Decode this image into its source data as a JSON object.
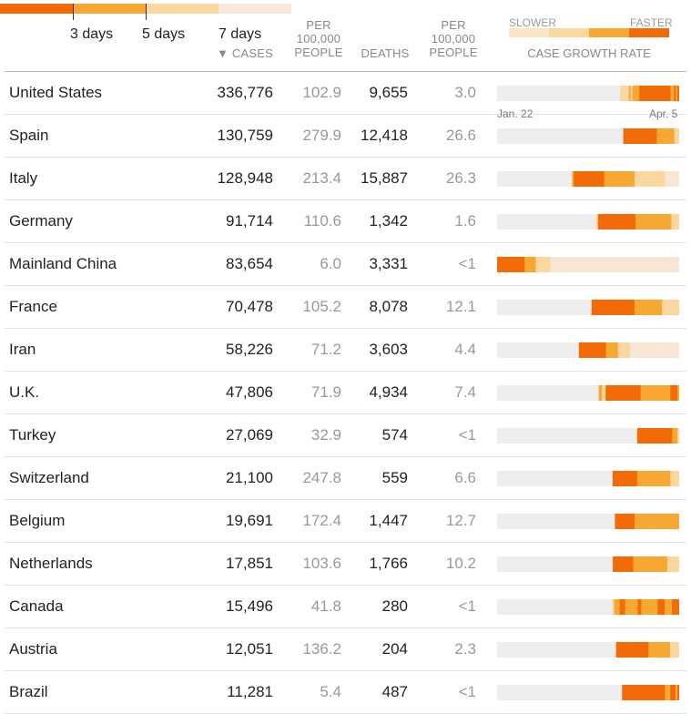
{
  "legend": {
    "labels": [
      "3 days",
      "5 days",
      "7 days"
    ],
    "colors": [
      "#f26b06",
      "#f7a833",
      "#fad79e",
      "#f7e8dd"
    ]
  },
  "headers": {
    "cases_arrow": "▼",
    "cases": "CASES",
    "per100k_1": "PER",
    "per100k_2": "100,000",
    "per100k_3": "PEOPLE",
    "deaths": "DEATHS",
    "dper100k_1": "PER",
    "dper100k_2": "100,000",
    "dper100k_3": "PEOPLE",
    "slower": "SLOWER",
    "faster": "FASTER",
    "growth": "CASE GROWTH RATE"
  },
  "dates": {
    "start": "Jan. 22",
    "end": "Apr. 5"
  },
  "rows": [
    {
      "country": "United States",
      "cases": "336,776",
      "per": "102.9",
      "deaths": "9,655",
      "dper": "3.0",
      "strip": "tttttttttttttttttttttttttttttttttttttttttttttttttttttttttttttttttttttttlllllmlmmmmhhhhhhhhhhhhhhhhhhmmhmh"
    },
    {
      "country": "Spain",
      "cases": "130,759",
      "per": "279.9",
      "deaths": "12,418",
      "dper": "26.6",
      "strip": "ttttttttttttttttttttttttttttttttttttttttttttttttttttttttttttttttttttttttttttttthhhhhhhhhhhhhhhhhhhhhmmmmmmmmmmmlll"
    },
    {
      "country": "Italy",
      "cases": "128,948",
      "per": "213.4",
      "deaths": "15,887",
      "dper": "26.3",
      "strip": "ttttttttttttttttttttttttttttttttttttttttttmhhhhhhhhhhhhhhhhhmmmmmmmmmmmmmmmmmlllllllllllllllllpppppppp"
    },
    {
      "country": "Germany",
      "cases": "91,714",
      "per": "110.6",
      "deaths": "1,342",
      "dper": "1.6",
      "strip": "ttttttttttttttttttttttttttttttttttttttttttttttttttlhhhhhhhhhhhhhhhhhhhmmmmmmmmmmmmmmmmmmllll"
    },
    {
      "country": "Mainland China",
      "cases": "83,654",
      "per": "6.0",
      "deaths": "3,331",
      "dper": "<1",
      "strip": "hhhhhhhhhhhhhhhmmmmmmllllllllpppppppppppppppppppppppppppppppppppppppppppppppppppppppppppppppppppppp"
    },
    {
      "country": "France",
      "cases": "70,478",
      "per": "105.2",
      "deaths": "8,078",
      "dper": "12.1",
      "strip": "ttttttttttttttttttttttttttttttttttttttttttttttttttttttthhhhhhhhhhhhhhhhhhhhhhhhhmmmmmmmmmmmmmmmmllllllllll"
    },
    {
      "country": "Iran",
      "cases": "58,226",
      "per": "71.2",
      "deaths": "3,603",
      "dper": "4.4",
      "strip": "tttttttttttttttttttttttttttttttttttttttttttttttthhhhhhhhhhhhhhhhmmmmmmmlllllllppppppppppppppppppppppppppppp"
    },
    {
      "country": "U.K.",
      "cases": "47,806",
      "per": "71.9",
      "deaths": "4,934",
      "dper": "7.4",
      "strip": "ttttttttttttttttttttttttttttttttttttttttttttttttttttttttttmmllhhhhhhhhhhhhhhhhhhhhmmmmmmmmmmmmmmmmmhhhhm"
    },
    {
      "country": "Turkey",
      "cases": "27,069",
      "per": "32.9",
      "deaths": "574",
      "dper": "<1",
      "strip": "tttttttttttttttttttttttttttttttttttttttttttttttttttttttttttttttttttttttttttttttthhhhhhhhhhhhhhhhhhhhmmml"
    },
    {
      "country": "Switzerland",
      "cases": "21,100",
      "per": "247.8",
      "deaths": "559",
      "dper": "6.6",
      "strip": "tttttttttttttttttttttttttttttttttttttttttttttttttttttttttttttttttthhhhhhhhhhhhhhmmmmmmmmmmmmmmmmmmmlllll"
    },
    {
      "country": "Belgium",
      "cases": "19,691",
      "per": "172.4",
      "deaths": "1,447",
      "dper": "12.7",
      "strip": "tttttttttttttttttttttttttttttttttttttttttttttttttttttttttttttttttthhhhhhhhhhhmmmmmmmmmmmmmmmmmmmmmmmmm"
    },
    {
      "country": "Netherlands",
      "cases": "17,851",
      "per": "103.6",
      "deaths": "1,766",
      "dper": "10.2",
      "strip": "tttttttttttttttttttttttttttttttttttttttttttttttttttttttttttttttttttthhhhhhhhhhhhmmmmmmmmmmmmmmmmmmmmlllllll"
    },
    {
      "country": "Canada",
      "cases": "15,496",
      "per": "41.8",
      "deaths": "280",
      "dper": "<1",
      "strip": "ttttttttttttttttttttttttttttttttttttttttttttttttttttttttttttttttlmmmhhhmmmmmmmhhmmmmmmmmmhhhhmmmmhhhh"
    },
    {
      "country": "Austria",
      "cases": "12,051",
      "per": "136.2",
      "deaths": "204",
      "dper": "2.3",
      "strip": "tttttttttttttttttttttttttttttttttttttttttttttttttttttttttttttttttthhhhhhhhhhhhhhhhhhmmmmmmmmmmmmlllll"
    },
    {
      "country": "Brazil",
      "cases": "11,281",
      "per": "5.4",
      "deaths": "487",
      "dper": "<1",
      "strip": "tttttttttttttttttttttttttttttttttttttttttttttttttttttttttttttttttttttthhhhhhhhhhhhhhhhhhhhhhhhmmmhhhmh"
    }
  ],
  "strip_colors": {
    "t": "#eeeeee",
    "p": "#f8e6d5",
    "l": "#fad79e",
    "m": "#f7a833",
    "h": "#f26b06"
  }
}
